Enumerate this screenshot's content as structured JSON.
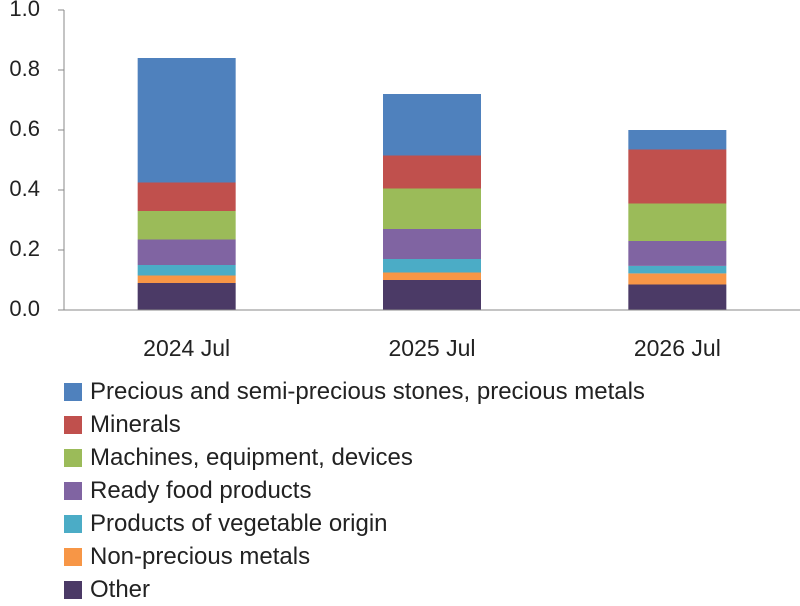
{
  "chart_data": {
    "type": "bar",
    "stacked": true,
    "categories": [
      "2024 Jul",
      "2025 Jul",
      "2026 Jul"
    ],
    "series": [
      {
        "name": "Other",
        "color": "#4b3a66",
        "values": [
          0.09,
          0.1,
          0.085
        ]
      },
      {
        "name": "Non-precious metals",
        "color": "#f79646",
        "values": [
          0.025,
          0.025,
          0.037
        ]
      },
      {
        "name": "Products of vegetable origin",
        "color": "#4bacc6",
        "values": [
          0.035,
          0.045,
          0.025
        ]
      },
      {
        "name": "Ready food products",
        "color": "#8064a2",
        "values": [
          0.085,
          0.1,
          0.083
        ]
      },
      {
        "name": "Machines, equipment, devices",
        "color": "#9bbb59",
        "values": [
          0.095,
          0.135,
          0.125
        ]
      },
      {
        "name": "Minerals",
        "color": "#c0504d",
        "values": [
          0.095,
          0.11,
          0.18
        ]
      },
      {
        "name": "Precious and semi-precious stones, precious metals",
        "color": "#4f81bd",
        "values": [
          0.415,
          0.205,
          0.065
        ]
      }
    ],
    "ylim": [
      0,
      1.0
    ],
    "yticks": [
      "0.0",
      "0.2",
      "0.4",
      "0.6",
      "0.8",
      "1.0"
    ],
    "xlabel": "",
    "ylabel": "",
    "legend_position": "bottom",
    "legend": [
      "Precious and semi-precious stones, precious metals",
      "Minerals",
      "Machines, equipment, devices",
      "Ready food products",
      "Products of vegetable origin",
      "Non-precious metals",
      "Other"
    ]
  }
}
